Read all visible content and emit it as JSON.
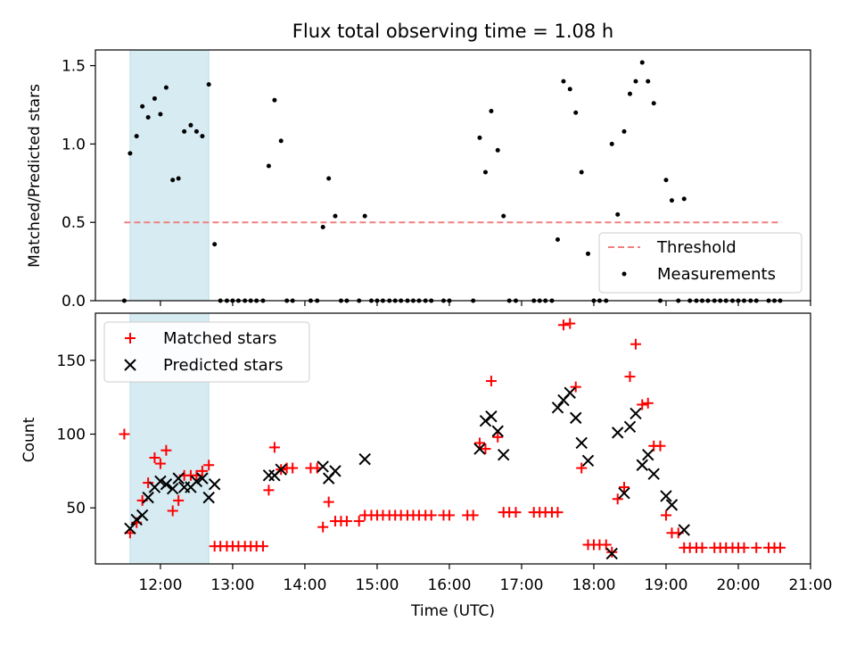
{
  "chart_data": [
    {
      "type": "scatter",
      "title": "Flux total observing time = 1.08 h",
      "xlabel": "",
      "ylabel": "Matched/Predicted stars",
      "xlim": [
        11.1,
        21.0
      ],
      "ylim": [
        0.0,
        1.6
      ],
      "yticks": [
        0.0,
        0.5,
        1.0,
        1.5
      ],
      "ytick_labels": [
        "0.0",
        "0.5",
        "1.0",
        "1.5"
      ],
      "shaded_span": [
        11.58,
        12.67
      ],
      "threshold": {
        "name": "Threshold",
        "value": 0.5,
        "x_range": [
          11.5,
          20.6
        ],
        "color": "#f08080"
      },
      "series": [
        {
          "name": "Measurements",
          "color": "#000000",
          "points": [
            [
              11.5,
              0.0
            ],
            [
              11.58,
              0.94
            ],
            [
              11.67,
              1.05
            ],
            [
              11.75,
              1.24
            ],
            [
              11.83,
              1.17
            ],
            [
              11.92,
              1.29
            ],
            [
              12.0,
              1.19
            ],
            [
              12.08,
              1.36
            ],
            [
              12.17,
              0.77
            ],
            [
              12.25,
              0.78
            ],
            [
              12.33,
              1.08
            ],
            [
              12.42,
              1.12
            ],
            [
              12.5,
              1.08
            ],
            [
              12.58,
              1.05
            ],
            [
              12.67,
              1.38
            ],
            [
              12.75,
              0.36
            ],
            [
              12.83,
              0.0
            ],
            [
              12.92,
              0.0
            ],
            [
              13.0,
              0.0
            ],
            [
              13.08,
              0.0
            ],
            [
              13.17,
              0.0
            ],
            [
              13.25,
              0.0
            ],
            [
              13.33,
              0.0
            ],
            [
              13.42,
              0.0
            ],
            [
              13.5,
              0.86
            ],
            [
              13.58,
              1.28
            ],
            [
              13.67,
              1.02
            ],
            [
              13.75,
              0.0
            ],
            [
              13.83,
              0.0
            ],
            [
              14.08,
              0.0
            ],
            [
              14.17,
              0.0
            ],
            [
              14.25,
              0.47
            ],
            [
              14.33,
              0.78
            ],
            [
              14.42,
              0.54
            ],
            [
              14.5,
              0.0
            ],
            [
              14.58,
              0.0
            ],
            [
              14.75,
              0.0
            ],
            [
              14.83,
              0.54
            ],
            [
              14.92,
              0.0
            ],
            [
              15.0,
              0.0
            ],
            [
              15.08,
              0.0
            ],
            [
              15.17,
              0.0
            ],
            [
              15.25,
              0.0
            ],
            [
              15.33,
              0.0
            ],
            [
              15.42,
              0.0
            ],
            [
              15.5,
              0.0
            ],
            [
              15.58,
              0.0
            ],
            [
              15.67,
              0.0
            ],
            [
              15.75,
              0.0
            ],
            [
              15.92,
              0.0
            ],
            [
              16.0,
              0.0
            ],
            [
              16.33,
              0.0
            ],
            [
              16.42,
              1.04
            ],
            [
              16.5,
              0.82
            ],
            [
              16.58,
              1.21
            ],
            [
              16.67,
              0.96
            ],
            [
              16.75,
              0.54
            ],
            [
              16.83,
              0.0
            ],
            [
              16.92,
              0.0
            ],
            [
              17.17,
              0.0
            ],
            [
              17.25,
              0.0
            ],
            [
              17.33,
              0.0
            ],
            [
              17.42,
              0.0
            ],
            [
              17.5,
              0.39
            ],
            [
              17.58,
              1.4
            ],
            [
              17.67,
              1.35
            ],
            [
              17.75,
              1.2
            ],
            [
              17.83,
              0.82
            ],
            [
              17.92,
              0.3
            ],
            [
              18.0,
              0.0
            ],
            [
              18.08,
              0.0
            ],
            [
              18.17,
              0.0
            ],
            [
              18.25,
              1.0
            ],
            [
              18.33,
              0.55
            ],
            [
              18.42,
              1.08
            ],
            [
              18.5,
              1.32
            ],
            [
              18.58,
              1.4
            ],
            [
              18.67,
              1.52
            ],
            [
              18.75,
              1.4
            ],
            [
              18.83,
              1.26
            ],
            [
              18.92,
              0.0
            ],
            [
              19.0,
              0.77
            ],
            [
              19.08,
              0.64
            ],
            [
              19.17,
              0.0
            ],
            [
              19.25,
              0.65
            ],
            [
              19.33,
              0.0
            ],
            [
              19.42,
              0.0
            ],
            [
              19.5,
              0.0
            ],
            [
              19.58,
              0.0
            ],
            [
              19.67,
              0.0
            ],
            [
              19.75,
              0.0
            ],
            [
              19.83,
              0.0
            ],
            [
              19.92,
              0.0
            ],
            [
              20.0,
              0.0
            ],
            [
              20.08,
              0.0
            ],
            [
              20.17,
              0.0
            ],
            [
              20.25,
              0.0
            ],
            [
              20.42,
              0.0
            ],
            [
              20.5,
              0.0
            ],
            [
              20.58,
              0.0
            ]
          ]
        }
      ],
      "legend": {
        "position": "lower-right",
        "entries": [
          "Threshold",
          "Measurements"
        ]
      }
    },
    {
      "type": "scatter",
      "title": "",
      "xlabel": "Time (UTC)",
      "ylabel": "Count",
      "xlim": [
        11.1,
        21.0
      ],
      "ylim": [
        12,
        182
      ],
      "yticks": [
        50,
        100,
        150
      ],
      "ytick_labels": [
        "50",
        "100",
        "150"
      ],
      "xticks": [
        12,
        13,
        14,
        15,
        16,
        17,
        18,
        19,
        20,
        21
      ],
      "xtick_labels": [
        "12:00",
        "13:00",
        "14:00",
        "15:00",
        "16:00",
        "17:00",
        "18:00",
        "19:00",
        "20:00",
        "21:00"
      ],
      "shaded_span": [
        11.58,
        12.67
      ],
      "series": [
        {
          "name": "Matched stars",
          "marker": "+",
          "color": "#ff0000",
          "points": [
            [
              11.5,
              100
            ],
            [
              11.58,
              33
            ],
            [
              11.67,
              40
            ],
            [
              11.75,
              55
            ],
            [
              11.83,
              67
            ],
            [
              11.92,
              84
            ],
            [
              12.0,
              80
            ],
            [
              12.08,
              89
            ],
            [
              12.17,
              48
            ],
            [
              12.25,
              55
            ],
            [
              12.33,
              72
            ],
            [
              12.42,
              72
            ],
            [
              12.5,
              72
            ],
            [
              12.58,
              75
            ],
            [
              12.67,
              79
            ],
            [
              12.75,
              24
            ],
            [
              12.83,
              24
            ],
            [
              12.92,
              24
            ],
            [
              13.0,
              24
            ],
            [
              13.08,
              24
            ],
            [
              13.17,
              24
            ],
            [
              13.25,
              24
            ],
            [
              13.33,
              24
            ],
            [
              13.42,
              24
            ],
            [
              13.5,
              62
            ],
            [
              13.58,
              91
            ],
            [
              13.67,
              76
            ],
            [
              13.75,
              77
            ],
            [
              13.83,
              77
            ],
            [
              14.08,
              77
            ],
            [
              14.17,
              77
            ],
            [
              14.25,
              37
            ],
            [
              14.33,
              54
            ],
            [
              14.42,
              41
            ],
            [
              14.5,
              41
            ],
            [
              14.58,
              41
            ],
            [
              14.75,
              41
            ],
            [
              14.83,
              45
            ],
            [
              14.92,
              45
            ],
            [
              15.0,
              45
            ],
            [
              15.08,
              45
            ],
            [
              15.17,
              45
            ],
            [
              15.25,
              45
            ],
            [
              15.33,
              45
            ],
            [
              15.42,
              45
            ],
            [
              15.5,
              45
            ],
            [
              15.58,
              45
            ],
            [
              15.67,
              45
            ],
            [
              15.75,
              45
            ],
            [
              15.92,
              45
            ],
            [
              16.0,
              45
            ],
            [
              16.25,
              45
            ],
            [
              16.33,
              45
            ],
            [
              16.42,
              94
            ],
            [
              16.5,
              90
            ],
            [
              16.58,
              136
            ],
            [
              16.67,
              98
            ],
            [
              16.75,
              47
            ],
            [
              16.83,
              47
            ],
            [
              16.92,
              47
            ],
            [
              17.17,
              47
            ],
            [
              17.25,
              47
            ],
            [
              17.33,
              47
            ],
            [
              17.42,
              47
            ],
            [
              17.5,
              47
            ],
            [
              17.58,
              174
            ],
            [
              17.67,
              175
            ],
            [
              17.75,
              132
            ],
            [
              17.83,
              77
            ],
            [
              17.92,
              25
            ],
            [
              18.0,
              25
            ],
            [
              18.08,
              25
            ],
            [
              18.17,
              25
            ],
            [
              18.25,
              20
            ],
            [
              18.33,
              56
            ],
            [
              18.42,
              64
            ],
            [
              18.5,
              139
            ],
            [
              18.58,
              161
            ],
            [
              18.67,
              120
            ],
            [
              18.75,
              121
            ],
            [
              18.83,
              92
            ],
            [
              18.92,
              92
            ],
            [
              19.0,
              45
            ],
            [
              19.08,
              33
            ],
            [
              19.17,
              33
            ],
            [
              19.25,
              23
            ],
            [
              19.33,
              23
            ],
            [
              19.42,
              23
            ],
            [
              19.5,
              23
            ],
            [
              19.67,
              23
            ],
            [
              19.75,
              23
            ],
            [
              19.83,
              23
            ],
            [
              19.92,
              23
            ],
            [
              20.0,
              23
            ],
            [
              20.08,
              23
            ],
            [
              20.25,
              23
            ],
            [
              20.42,
              23
            ],
            [
              20.5,
              23
            ],
            [
              20.58,
              23
            ]
          ]
        },
        {
          "name": "Predicted stars",
          "marker": "x",
          "color": "#000000",
          "points": [
            [
              11.58,
              36
            ],
            [
              11.67,
              42
            ],
            [
              11.75,
              45
            ],
            [
              11.83,
              57
            ],
            [
              11.92,
              64
            ],
            [
              12.0,
              68
            ],
            [
              12.08,
              66
            ],
            [
              12.17,
              63
            ],
            [
              12.25,
              70
            ],
            [
              12.33,
              64
            ],
            [
              12.42,
              64
            ],
            [
              12.5,
              68
            ],
            [
              12.58,
              70
            ],
            [
              12.67,
              57
            ],
            [
              12.75,
              66
            ],
            [
              13.5,
              72
            ],
            [
              13.58,
              72
            ],
            [
              13.67,
              76
            ],
            [
              14.25,
              78
            ],
            [
              14.33,
              70
            ],
            [
              14.42,
              75
            ],
            [
              14.83,
              83
            ],
            [
              16.42,
              90
            ],
            [
              16.5,
              109
            ],
            [
              16.58,
              112
            ],
            [
              16.67,
              102
            ],
            [
              16.75,
              86
            ],
            [
              17.5,
              118
            ],
            [
              17.58,
              123
            ],
            [
              17.67,
              128
            ],
            [
              17.75,
              111
            ],
            [
              17.83,
              94
            ],
            [
              17.92,
              82
            ],
            [
              18.25,
              19
            ],
            [
              18.33,
              101
            ],
            [
              18.42,
              60
            ],
            [
              18.5,
              105
            ],
            [
              18.58,
              114
            ],
            [
              18.67,
              79
            ],
            [
              18.75,
              86
            ],
            [
              18.83,
              73
            ],
            [
              19.0,
              58
            ],
            [
              19.08,
              52
            ],
            [
              19.25,
              35
            ]
          ]
        }
      ],
      "legend": {
        "position": "upper-left",
        "entries": [
          "Matched stars",
          "Predicted stars"
        ]
      }
    }
  ]
}
